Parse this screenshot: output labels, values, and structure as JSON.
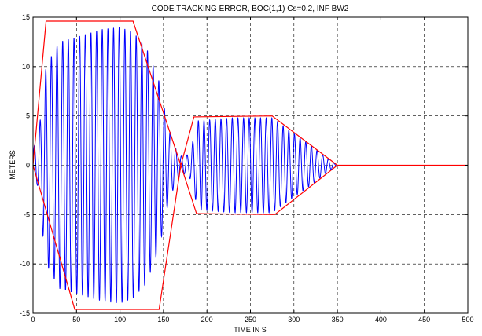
{
  "chart_data": {
    "type": "line",
    "title": "CODE TRACKING ERROR, BOC(1,1) Cs=0.2, INF BW2",
    "xlabel": "TIME IN S",
    "ylabel": "METERS",
    "xlim": [
      0,
      500
    ],
    "ylim": [
      -15,
      15
    ],
    "x_ticks": [
      0,
      50,
      100,
      150,
      200,
      250,
      300,
      350,
      400,
      450,
      500
    ],
    "y_ticks": [
      -15,
      -10,
      -5,
      0,
      5,
      10,
      15
    ],
    "x_tick_labels": [
      "0",
      "50",
      "100",
      "150",
      "200",
      "250",
      "300",
      "350",
      "400",
      "450",
      "500"
    ],
    "y_tick_labels": [
      "-15",
      "-10",
      "-5",
      "0",
      "5",
      "10",
      "15"
    ],
    "grid": "dashed",
    "colors": {
      "signal": "#0000ff",
      "envelope": "#ff0000",
      "grid": "#000000"
    },
    "series": [
      {
        "color": "#0000ff",
        "kind": "oscillation",
        "period_s": 6.5,
        "ends_at_s": 348,
        "amplitude_profile": [
          [
            0,
            2.0
          ],
          [
            5,
            2.0
          ],
          [
            15,
            10.0
          ],
          [
            30,
            12.5
          ],
          [
            50,
            13.0
          ],
          [
            80,
            13.8
          ],
          [
            100,
            14.0
          ],
          [
            115,
            13.5
          ],
          [
            130,
            12.0
          ],
          [
            145,
            8.5
          ],
          [
            155,
            4.0
          ],
          [
            165,
            1.5
          ],
          [
            172,
            0.8
          ],
          [
            180,
            1.2
          ],
          [
            190,
            4.5
          ],
          [
            230,
            4.8
          ],
          [
            275,
            4.8
          ],
          [
            300,
            3.2
          ],
          [
            320,
            2.0
          ],
          [
            340,
            0.6
          ],
          [
            348,
            0.1
          ]
        ]
      },
      {
        "color": "#ff0000",
        "kind": "envelope-upper-1",
        "x": [
          0,
          15,
          50,
          115,
          170
        ],
        "y": [
          0,
          14.6,
          14.6,
          14.6,
          0
        ]
      },
      {
        "color": "#ff0000",
        "kind": "envelope-lower-1",
        "x": [
          0,
          48,
          145,
          170
        ],
        "y": [
          0,
          -14.6,
          -14.6,
          0
        ]
      },
      {
        "color": "#ff0000",
        "kind": "envelope-upper-2",
        "x": [
          170,
          185,
          275,
          350
        ],
        "y": [
          0,
          4.9,
          5.0,
          0
        ]
      },
      {
        "color": "#ff0000",
        "kind": "envelope-lower-2",
        "x": [
          170,
          188,
          278,
          350
        ],
        "y": [
          0,
          -4.9,
          -5.0,
          0
        ]
      },
      {
        "color": "#ff0000",
        "kind": "baseline",
        "x": [
          350,
          500
        ],
        "y": [
          0,
          0
        ]
      }
    ]
  }
}
